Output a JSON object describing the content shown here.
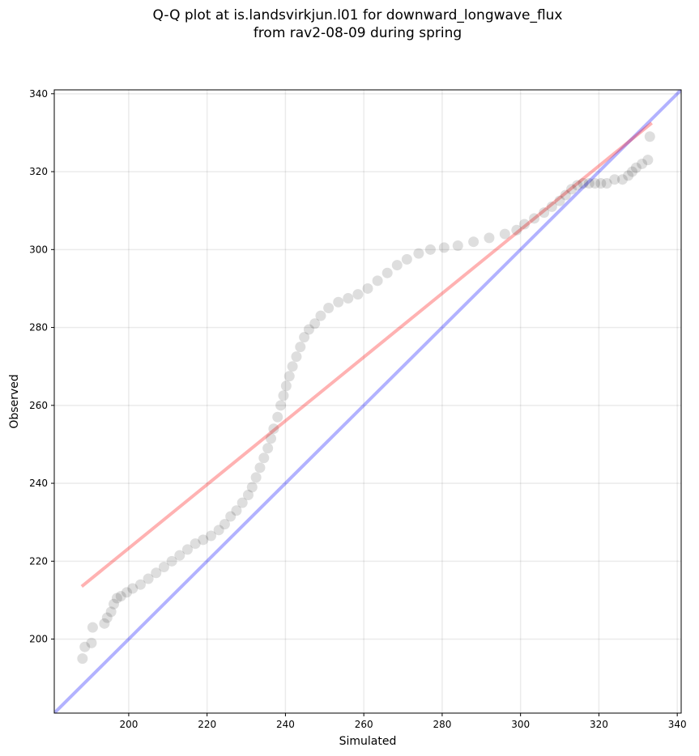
{
  "title_line1": "Q-Q plot at is.landsvirkjun.l01 for downward_longwave_flux",
  "title_line2": "from rav2-08-09 during spring",
  "chart_data": {
    "type": "scatter",
    "xlabel": "Simulated",
    "ylabel": "Observed",
    "xlim": [
      181,
      341
    ],
    "ylim": [
      181,
      341
    ],
    "xticks": [
      200,
      220,
      240,
      260,
      280,
      300,
      320,
      340
    ],
    "yticks": [
      200,
      220,
      240,
      260,
      280,
      300,
      320,
      340
    ],
    "grid": true,
    "points": [
      [
        188.2,
        195.0
      ],
      [
        188.8,
        198.0
      ],
      [
        190.5,
        199.0
      ],
      [
        190.8,
        203.0
      ],
      [
        193.8,
        204.0
      ],
      [
        194.5,
        205.5
      ],
      [
        195.5,
        207.0
      ],
      [
        196.2,
        209.0
      ],
      [
        197.0,
        210.5
      ],
      [
        198.0,
        211.0
      ],
      [
        199.5,
        212.0
      ],
      [
        201.0,
        213.0
      ],
      [
        203.0,
        214.0
      ],
      [
        205.0,
        215.5
      ],
      [
        207.0,
        217.0
      ],
      [
        209.0,
        218.5
      ],
      [
        211.0,
        220.0
      ],
      [
        213.0,
        221.5
      ],
      [
        215.0,
        223.0
      ],
      [
        217.0,
        224.5
      ],
      [
        219.0,
        225.5
      ],
      [
        221.0,
        226.5
      ],
      [
        223.0,
        228.0
      ],
      [
        224.5,
        229.5
      ],
      [
        226.0,
        231.5
      ],
      [
        227.5,
        233.0
      ],
      [
        229.0,
        235.0
      ],
      [
        230.5,
        237.0
      ],
      [
        231.5,
        239.0
      ],
      [
        232.5,
        241.5
      ],
      [
        233.5,
        244.0
      ],
      [
        234.5,
        246.5
      ],
      [
        235.5,
        249.0
      ],
      [
        236.3,
        251.5
      ],
      [
        237.0,
        254.0
      ],
      [
        238.0,
        257.0
      ],
      [
        238.8,
        260.0
      ],
      [
        239.5,
        262.5
      ],
      [
        240.2,
        265.0
      ],
      [
        241.0,
        267.5
      ],
      [
        241.8,
        270.0
      ],
      [
        242.8,
        272.5
      ],
      [
        243.8,
        275.0
      ],
      [
        244.8,
        277.5
      ],
      [
        246.0,
        279.5
      ],
      [
        247.5,
        281.0
      ],
      [
        249.0,
        283.0
      ],
      [
        251.0,
        285.0
      ],
      [
        253.5,
        286.5
      ],
      [
        256.0,
        287.5
      ],
      [
        258.5,
        288.5
      ],
      [
        261.0,
        290.0
      ],
      [
        263.5,
        292.0
      ],
      [
        266.0,
        294.0
      ],
      [
        268.5,
        296.0
      ],
      [
        271.0,
        297.5
      ],
      [
        274.0,
        299.0
      ],
      [
        277.0,
        300.0
      ],
      [
        280.5,
        300.5
      ],
      [
        284.0,
        301.0
      ],
      [
        288.0,
        302.0
      ],
      [
        292.0,
        303.0
      ],
      [
        296.0,
        304.0
      ],
      [
        299.0,
        305.0
      ],
      [
        301.0,
        306.5
      ],
      [
        303.5,
        308.0
      ],
      [
        306.0,
        309.5
      ],
      [
        308.0,
        311.0
      ],
      [
        310.0,
        312.5
      ],
      [
        311.5,
        314.0
      ],
      [
        313.0,
        315.5
      ],
      [
        314.5,
        316.5
      ],
      [
        316.0,
        317.0
      ],
      [
        317.5,
        317.0
      ],
      [
        319.0,
        317.0
      ],
      [
        320.5,
        317.0
      ],
      [
        322.0,
        317.0
      ],
      [
        324.0,
        318.0
      ],
      [
        326.0,
        318.0
      ],
      [
        327.5,
        319.0
      ],
      [
        328.5,
        320.0
      ],
      [
        329.5,
        321.0
      ],
      [
        331.0,
        322.0
      ],
      [
        332.5,
        323.0
      ],
      [
        333.0,
        329.0
      ]
    ],
    "reference_lines": [
      {
        "name": "1:1",
        "color": "#0000ff",
        "opacity": 0.3,
        "from": [
          181,
          181
        ],
        "to": [
          341,
          341
        ]
      },
      {
        "name": "fit",
        "color": "#ff0000",
        "opacity": 0.3,
        "from": [
          188,
          213.5
        ],
        "to": [
          333.5,
          332.5
        ]
      }
    ],
    "point_color": "#000000"
  }
}
